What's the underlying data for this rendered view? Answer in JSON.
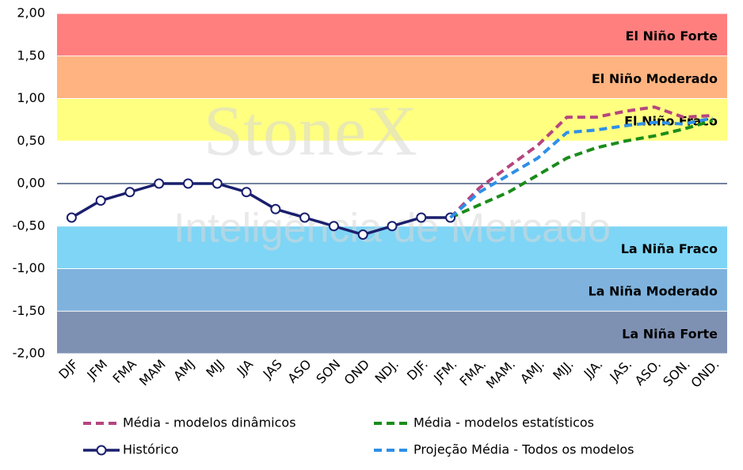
{
  "chart_data": {
    "type": "line",
    "categories": [
      "DJF",
      "JFM",
      "FMA",
      "MAM",
      "AMJ",
      "MJJ",
      "JJA",
      "JAS",
      "ASO",
      "SON",
      "OND",
      "NDJ.",
      "DJF.",
      "JFM.",
      "FMA.",
      "MAM.",
      "AMJ.",
      "MJJ.",
      "JJA.",
      "JAS.",
      "ASO.",
      "SON.",
      "OND."
    ],
    "ylim": [
      -2,
      2
    ],
    "yticks": [
      {
        "value": -2,
        "label": "-2,00"
      },
      {
        "value": -1.5,
        "label": "-1,50"
      },
      {
        "value": -1,
        "label": "-1,00"
      },
      {
        "value": -0.5,
        "label": "-0,50"
      },
      {
        "value": 0,
        "label": "0,00"
      },
      {
        "value": 0.5,
        "label": "0,50"
      },
      {
        "value": 1,
        "label": "1,00"
      },
      {
        "value": 1.5,
        "label": "1,50"
      },
      {
        "value": 2,
        "label": "2,00"
      }
    ],
    "bands": [
      {
        "label": "El Niño Forte",
        "range": [
          1.5,
          2
        ],
        "color": "#ff7f7f"
      },
      {
        "label": "El Niño Moderado",
        "range": [
          1,
          1.5
        ],
        "color": "#ffb380"
      },
      {
        "label": "El Niño Fraco",
        "range": [
          0.5,
          1
        ],
        "color": "#ffff80"
      },
      {
        "label": "La Niña Fraco",
        "range": [
          -1,
          -0.5
        ],
        "color": "#7fd5f5"
      },
      {
        "label": "La Niña Moderado",
        "range": [
          -1.5,
          -1
        ],
        "color": "#7fb3dd"
      },
      {
        "label": "La Niña Forte",
        "range": [
          -2,
          -1.5
        ],
        "color": "#7f91b3"
      }
    ],
    "watermark": [
      "StoneX",
      "Inteligência de Mercado"
    ],
    "zero_line_color": "#1f3864",
    "series": [
      {
        "name": "Média - modelos dinâmicos",
        "color": "#b5457f",
        "dashed": true,
        "markers": false,
        "values": [
          null,
          null,
          null,
          null,
          null,
          null,
          null,
          null,
          null,
          null,
          null,
          null,
          null,
          -0.4,
          -0.05,
          0.2,
          0.45,
          0.78,
          0.78,
          0.85,
          0.9,
          0.78,
          0.8
        ]
      },
      {
        "name": "Média - modelos estatísticos",
        "color": "#1a8c1a",
        "dashed": true,
        "markers": false,
        "values": [
          null,
          null,
          null,
          null,
          null,
          null,
          null,
          null,
          null,
          null,
          null,
          null,
          null,
          -0.4,
          -0.25,
          -0.1,
          0.1,
          0.3,
          0.42,
          0.5,
          0.56,
          0.64,
          0.74
        ]
      },
      {
        "name": "Histórico",
        "color": "#1a1f6e",
        "dashed": false,
        "markers": true,
        "values": [
          -0.4,
          -0.2,
          -0.1,
          0,
          0,
          0,
          -0.1,
          -0.3,
          -0.4,
          -0.5,
          -0.6,
          -0.5,
          -0.4,
          -0.4,
          null,
          null,
          null,
          null,
          null,
          null,
          null,
          null,
          null
        ]
      },
      {
        "name": "Projeção Média - Todos os modelos",
        "color": "#2f8fe8",
        "dashed": true,
        "markers": false,
        "values": [
          null,
          null,
          null,
          null,
          null,
          null,
          null,
          null,
          null,
          null,
          null,
          null,
          null,
          -0.4,
          -0.1,
          0.1,
          0.3,
          0.6,
          0.63,
          0.68,
          0.72,
          0.7,
          0.77
        ]
      }
    ]
  }
}
